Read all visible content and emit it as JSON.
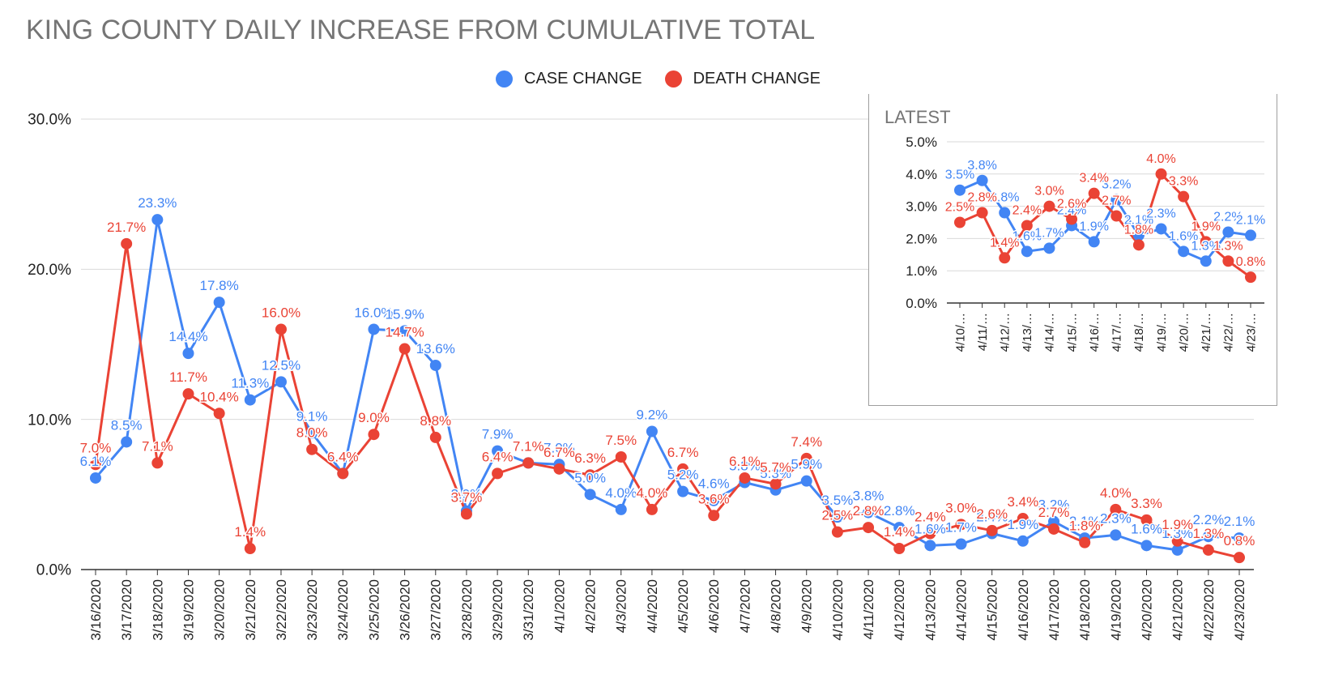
{
  "title": "KING COUNTY DAILY INCREASE FROM CUMULATIVE TOTAL",
  "legend": {
    "case_label": "CASE CHANGE",
    "death_label": "DEATH CHANGE"
  },
  "colors": {
    "case": "#4285f4",
    "death": "#ea4335",
    "grid": "#d9d9d9",
    "axis": "#333333"
  },
  "chart_data": [
    {
      "type": "line",
      "title": "KING COUNTY DAILY INCREASE FROM CUMULATIVE TOTAL",
      "ylim": [
        0,
        30
      ],
      "yticks": [
        "0.0%",
        "10.0%",
        "20.0%",
        "30.0%"
      ],
      "categories": [
        "3/16/2020",
        "3/17/2020",
        "3/18/2020",
        "3/19/2020",
        "3/20/2020",
        "3/21/2020",
        "3/22/2020",
        "3/23/2020",
        "3/24/2020",
        "3/25/2020",
        "3/26/2020",
        "3/27/2020",
        "3/28/2020",
        "3/29/2020",
        "3/31/2020",
        "4/1/2020",
        "4/2/2020",
        "4/3/2020",
        "4/4/2020",
        "4/5/2020",
        "4/6/2020",
        "4/7/2020",
        "4/8/2020",
        "4/9/2020",
        "4/10/2020",
        "4/11/2020",
        "4/12/2020",
        "4/13/2020",
        "4/14/2020",
        "4/15/2020",
        "4/16/2020",
        "4/17/2020",
        "4/18/2020",
        "4/19/2020",
        "4/20/2020",
        "4/21/2020",
        "4/22/2020",
        "4/23/2020"
      ],
      "series": [
        {
          "name": "CASE CHANGE",
          "values": [
            6.1,
            8.5,
            23.3,
            14.4,
            17.8,
            11.3,
            12.5,
            9.1,
            6.4,
            16.0,
            15.9,
            13.6,
            3.9,
            7.9,
            7.1,
            7.0,
            5.0,
            4.0,
            9.2,
            5.2,
            4.6,
            5.8,
            5.3,
            5.9,
            3.5,
            3.8,
            2.8,
            1.6,
            1.7,
            2.4,
            1.9,
            3.2,
            2.1,
            2.3,
            1.6,
            1.3,
            2.2,
            2.1
          ]
        },
        {
          "name": "DEATH CHANGE",
          "values": [
            7.0,
            21.7,
            7.1,
            11.7,
            10.4,
            1.4,
            16.0,
            8.0,
            6.4,
            9.0,
            14.7,
            8.8,
            3.7,
            6.4,
            7.1,
            6.7,
            6.3,
            7.5,
            4.0,
            6.7,
            3.6,
            6.1,
            5.7,
            7.4,
            2.5,
            2.8,
            1.4,
            2.4,
            3.0,
            2.6,
            3.4,
            2.7,
            1.8,
            4.0,
            3.3,
            1.9,
            1.3,
            0.8
          ]
        }
      ],
      "grid": true,
      "legend_position": "top"
    },
    {
      "type": "line",
      "title": "LATEST",
      "ylim": [
        0,
        5
      ],
      "yticks": [
        "0.0%",
        "1.0%",
        "2.0%",
        "3.0%",
        "4.0%",
        "5.0%"
      ],
      "categories": [
        "4/10/…",
        "4/11/…",
        "4/12/…",
        "4/13/…",
        "4/14/…",
        "4/15/…",
        "4/16/…",
        "4/17/…",
        "4/18/…",
        "4/19/…",
        "4/20/…",
        "4/21/…",
        "4/22/…",
        "4/23/…"
      ],
      "series": [
        {
          "name": "CASE CHANGE",
          "values": [
            3.5,
            3.8,
            2.8,
            1.6,
            1.7,
            2.4,
            1.9,
            3.2,
            2.1,
            2.3,
            1.6,
            1.3,
            2.2,
            2.1
          ]
        },
        {
          "name": "DEATH CHANGE",
          "values": [
            2.5,
            2.8,
            1.4,
            2.4,
            3.0,
            2.6,
            3.4,
            2.7,
            1.8,
            4.0,
            3.3,
            1.9,
            1.3,
            0.8
          ]
        }
      ],
      "grid": true
    }
  ]
}
